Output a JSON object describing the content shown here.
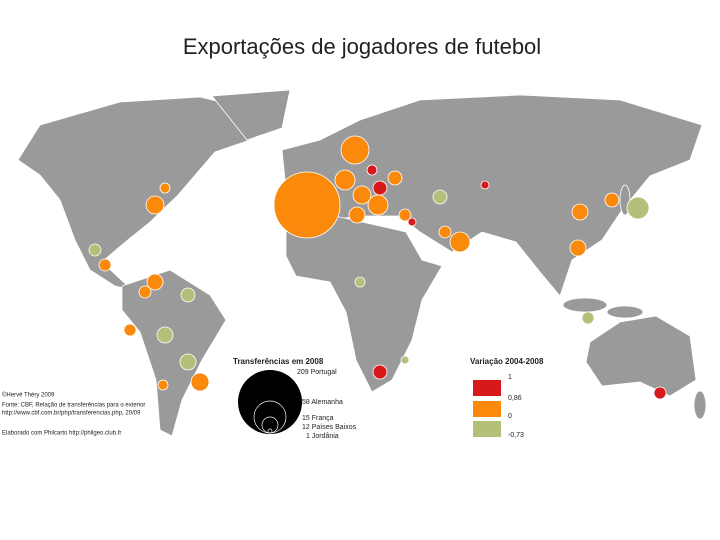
{
  "title": "Exportações de jogadores de futebol",
  "legend_size": {
    "title": "Transferências em 2008",
    "items": [
      "209 Portugal",
      "58 Alemanha",
      "15 França",
      "12 Países Baixos",
      "1 Jordânia"
    ]
  },
  "legend_color": {
    "title": "Variação 2004-2008",
    "breaks": [
      "1",
      "0,86",
      "0",
      "-0,73"
    ]
  },
  "credits": [
    "©Hervé Théry 2009",
    "Fonte: CBF, Relação de transferências para o exterior",
    "http://www.cbf.com.br/php/transferencias.php, 20/09",
    "Elaborado com Philcarto http://philgeo.club.fr"
  ]
}
